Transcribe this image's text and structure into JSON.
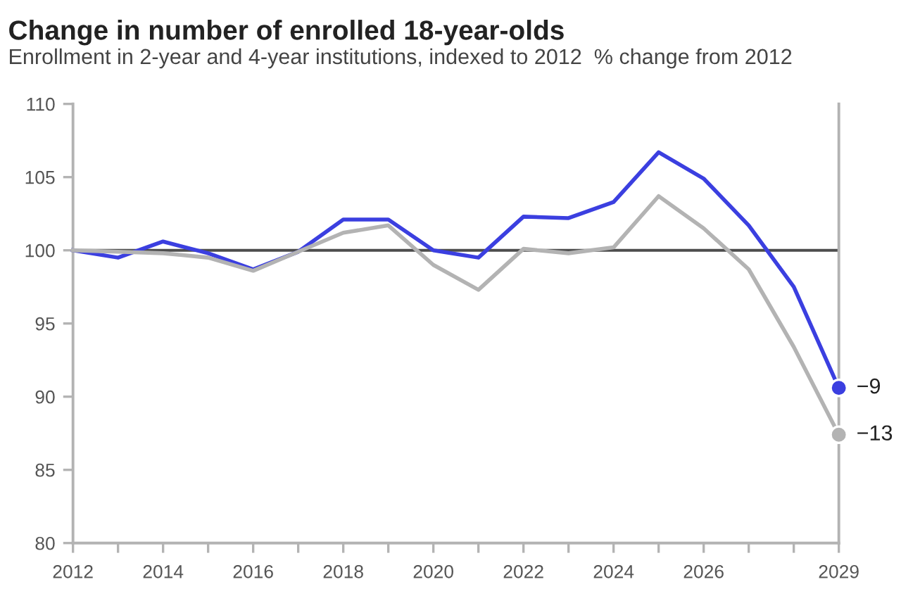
{
  "chart_data": {
    "type": "line",
    "title": "Change in number of enrolled 18-year-olds",
    "subtitle": "Enrollment in 2-year and 4-year institutions, indexed to 2012  % change from 2012",
    "x": [
      2012,
      2013,
      2014,
      2015,
      2016,
      2017,
      2018,
      2019,
      2020,
      2021,
      2022,
      2023,
      2024,
      2025,
      2026,
      2027,
      2028,
      2029
    ],
    "series": [
      {
        "color": "#3b3fe0",
        "values": [
          100,
          99.5,
          100.6,
          99.8,
          98.7,
          99.9,
          102.1,
          102.1,
          100.0,
          99.5,
          102.3,
          102.2,
          103.3,
          106.7,
          104.9,
          101.7,
          97.5,
          90.6
        ]
      },
      {
        "color": "#b3b3b3",
        "values": [
          100,
          99.9,
          99.8,
          99.5,
          98.6,
          99.9,
          101.2,
          101.7,
          99.0,
          97.3,
          100.1,
          99.8,
          100.2,
          103.7,
          101.5,
          98.7,
          93.4,
          87.4
        ]
      },
      {
        "type": "scatter",
        "marker": "circle",
        "x": [
          2029
        ],
        "values": [
          90.6
        ],
        "color": "#3b3fe0"
      },
      {
        "type": "scatter",
        "marker": "circle",
        "x": [
          2029
        ],
        "values": [
          87.4
        ],
        "color": "#b3b3b3"
      }
    ],
    "annotations": [
      {
        "text": "−9",
        "x": 2029,
        "y": 90.6
      },
      {
        "text": "−13",
        "x": 2029,
        "y": 87.4
      }
    ],
    "xlim": [
      2012,
      2029
    ],
    "xticks": [
      2012,
      {
        "value": 2013,
        "label": null
      },
      2014,
      {
        "value": 2015,
        "label": null
      },
      2016,
      {
        "value": 2017,
        "label": null
      },
      2018,
      {
        "value": 2019,
        "label": null
      },
      2020,
      {
        "value": 2021,
        "label": null
      },
      2022,
      {
        "value": 2023,
        "label": null
      },
      2024,
      {
        "value": 2025,
        "label": null
      },
      2026,
      {
        "value": 2027,
        "label": null
      },
      {
        "value": 2028,
        "label": null
      },
      2029
    ],
    "ylim": [
      80,
      110
    ],
    "yticks": [
      80,
      85,
      90,
      95,
      100,
      105,
      110
    ],
    "ref_lines": [
      {
        "axis": "y",
        "value": 100,
        "color": "#4d4d4d"
      },
      {
        "axis": "x",
        "value": 2029,
        "color": "#b3b3b3"
      }
    ],
    "grid": false,
    "legend": false
  }
}
